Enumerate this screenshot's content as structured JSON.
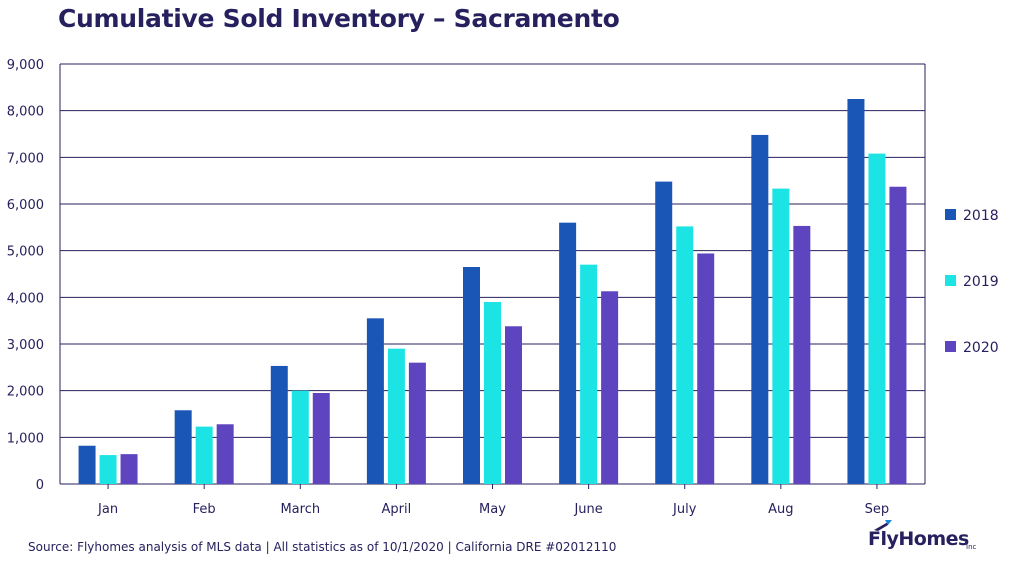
{
  "chart_data": {
    "type": "bar",
    "title": "Cumulative Sold Inventory – Sacramento",
    "categories": [
      "Jan",
      "Feb",
      "March",
      "April",
      "May",
      "June",
      "July",
      "Aug",
      "Sep"
    ],
    "series": [
      {
        "name": "2018",
        "color": "#1a56b5",
        "values": [
          820,
          1580,
          2530,
          3550,
          4650,
          5600,
          6480,
          7480,
          8250
        ]
      },
      {
        "name": "2019",
        "color": "#1de4e4",
        "values": [
          620,
          1230,
          2000,
          2900,
          3900,
          4700,
          5520,
          6330,
          7080
        ]
      },
      {
        "name": "2020",
        "color": "#5e45bf",
        "values": [
          640,
          1280,
          1950,
          2600,
          3380,
          4130,
          4940,
          5530,
          6370
        ]
      }
    ],
    "ylim": [
      0,
      9000
    ],
    "yticks": [
      0,
      1000,
      2000,
      3000,
      4000,
      5000,
      6000,
      7000,
      8000,
      9000
    ],
    "ytick_labels": [
      "0",
      "1,000",
      "2,000",
      "3,000",
      "4,000",
      "5,000",
      "6,000",
      "7,000",
      "8,000",
      "9,000"
    ],
    "grid": true,
    "legend_position": "right",
    "xlabel": "",
    "ylabel": ""
  },
  "footer": {
    "source": "Source: Flyhomes analysis of MLS data | All statistics as of 10/1/2020 | California DRE #02012110"
  },
  "logo": {
    "name": "FlyHomes",
    "sub": "Inc"
  }
}
